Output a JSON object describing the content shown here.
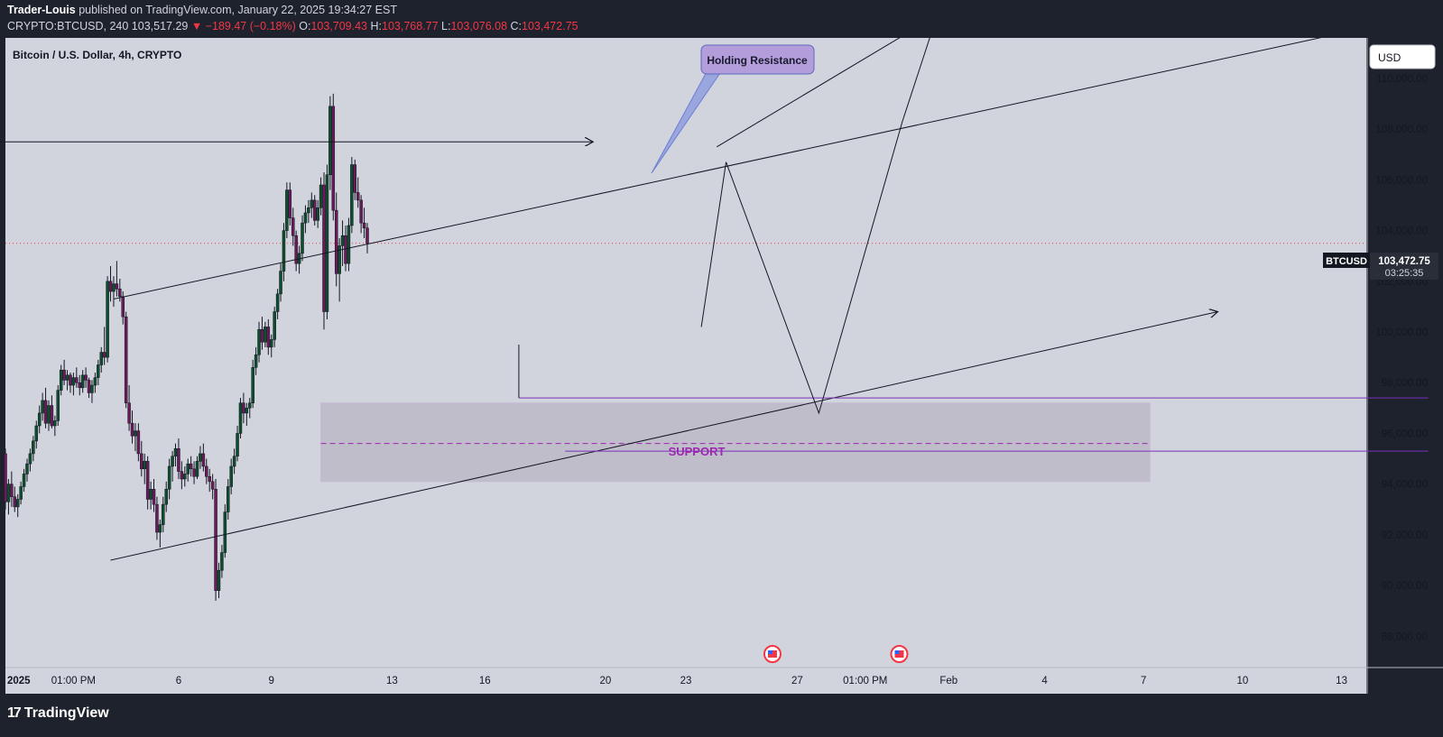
{
  "header": {
    "publisher": "Trader-Louis",
    "published_text": "published on TradingView.com, January 22, 2025 19:34:27 EST",
    "symbol": "CRYPTO:BTCUSD, 240",
    "last": "103,517.29",
    "change": "▼ −189.47 (−0.18%)",
    "o_label": "O:",
    "o": "103,709.43",
    "h_label": "H:",
    "h": "103,768.77",
    "l_label": "L:",
    "l": "103,076.08",
    "c_label": "C:",
    "c": "103,472.75"
  },
  "legend_title": "Bitcoin / U.S. Dollar, 4h, CRYPTO",
  "currency_button": "USD",
  "price_tag": {
    "symbol": "BTCUSD",
    "price": "103,472.75",
    "countdown": "03:25:35"
  },
  "annotations": {
    "callout": "Holding Resistance",
    "support": "SUPPORT"
  },
  "colors": {
    "bg": "#d1d4dc",
    "bull": "#0e4d2e",
    "bear": "#6b1a5a",
    "support_line": "#7b2fbe",
    "callout_fill": "#b39ddb",
    "zone": "#b8b5c4"
  },
  "branding": {
    "logo_mark": "17",
    "logo_text": "TradingView"
  },
  "chart_data": {
    "type": "candlestick",
    "title": "Bitcoin / U.S. Dollar, 4h, CRYPTO",
    "ylim": [
      86800,
      111600
    ],
    "y_ticks": [
      88000,
      90000,
      92000,
      94000,
      96000,
      98000,
      100000,
      102000,
      104000,
      106000,
      108000,
      110000
    ],
    "y_tick_labels": [
      "88,000.00",
      "90,000.00",
      "92,000.00",
      "94,000.00",
      "96,000.00",
      "98,000.00",
      "100,000.00",
      "102,000.00",
      "104,000.00",
      "106,000.00",
      "108,000.00",
      "110,000.00"
    ],
    "x_tick_labels": [
      "2025",
      "01:00 PM",
      "6",
      "9",
      "13",
      "16",
      "20",
      "23",
      "27",
      "01:00 PM",
      "Feb",
      "4",
      "7",
      "10",
      "13"
    ],
    "x_tick_index": [
      0,
      22,
      56,
      86,
      125,
      155,
      194,
      220,
      256,
      278,
      305,
      336,
      368,
      400,
      432
    ],
    "index_range": [
      0,
      440
    ],
    "candles_start": 0,
    "candles": [
      [
        95200,
        95400,
        93000,
        93300
      ],
      [
        93300,
        94200,
        92800,
        94000
      ],
      [
        94000,
        94500,
        93100,
        93500
      ],
      [
        93500,
        93900,
        92900,
        93100
      ],
      [
        93100,
        93600,
        92700,
        93400
      ],
      [
        93400,
        94100,
        93200,
        93900
      ],
      [
        93900,
        94600,
        93700,
        94400
      ],
      [
        94400,
        95000,
        94100,
        94800
      ],
      [
        94800,
        95400,
        94500,
        95200
      ],
      [
        95200,
        95900,
        94900,
        95700
      ],
      [
        95700,
        96500,
        95400,
        96300
      ],
      [
        96300,
        97100,
        96000,
        96800
      ],
      [
        96800,
        97600,
        96500,
        97300
      ],
      [
        97300,
        97800,
        96200,
        96400
      ],
      [
        96400,
        97300,
        96100,
        97100
      ],
      [
        97100,
        97500,
        96200,
        96300
      ],
      [
        96300,
        96700,
        95900,
        96500
      ],
      [
        96500,
        97900,
        96300,
        97700
      ],
      [
        97700,
        98700,
        97500,
        98500
      ],
      [
        98500,
        98900,
        97900,
        98100
      ],
      [
        98100,
        98500,
        97700,
        98300
      ],
      [
        98300,
        98400,
        97600,
        97900
      ],
      [
        97900,
        98400,
        97500,
        98200
      ],
      [
        98200,
        98600,
        97800,
        98000
      ],
      [
        98000,
        98300,
        97500,
        97800
      ],
      [
        97800,
        98500,
        97600,
        98300
      ],
      [
        98300,
        98600,
        97800,
        98100
      ],
      [
        98100,
        98200,
        97400,
        97600
      ],
      [
        97600,
        98100,
        97200,
        97900
      ],
      [
        97900,
        98400,
        97600,
        98200
      ],
      [
        98200,
        98900,
        97900,
        98700
      ],
      [
        98700,
        99400,
        98400,
        99200
      ],
      [
        99200,
        100200,
        98700,
        99000
      ],
      [
        99000,
        102200,
        98800,
        102000
      ],
      [
        102000,
        102600,
        101200,
        101600
      ],
      [
        101600,
        102200,
        101000,
        101900
      ],
      [
        101900,
        102800,
        101400,
        101700
      ],
      [
        101700,
        102100,
        101200,
        101400
      ],
      [
        101400,
        101600,
        100300,
        100600
      ],
      [
        100600,
        100800,
        97000,
        97200
      ],
      [
        97200,
        97900,
        96100,
        96400
      ],
      [
        96400,
        96900,
        95600,
        95900
      ],
      [
        95900,
        96400,
        95300,
        96100
      ],
      [
        96100,
        96400,
        94900,
        95200
      ],
      [
        95200,
        95700,
        94300,
        94600
      ],
      [
        94600,
        95200,
        94000,
        94900
      ],
      [
        94900,
        95100,
        93000,
        93400
      ],
      [
        93400,
        94100,
        93000,
        93800
      ],
      [
        93800,
        94200,
        92900,
        93200
      ],
      [
        93200,
        93500,
        91800,
        92100
      ],
      [
        92100,
        92600,
        91500,
        92400
      ],
      [
        92400,
        93500,
        92100,
        93200
      ],
      [
        93200,
        94100,
        92900,
        93800
      ],
      [
        93800,
        95000,
        93400,
        94700
      ],
      [
        94700,
        95300,
        94100,
        95100
      ],
      [
        95100,
        95600,
        94700,
        95400
      ],
      [
        95400,
        95800,
        94200,
        94500
      ],
      [
        94500,
        94900,
        93800,
        94200
      ],
      [
        94200,
        94700,
        93900,
        94400
      ],
      [
        94400,
        95000,
        94100,
        94800
      ],
      [
        94800,
        95100,
        94300,
        94600
      ],
      [
        94600,
        94900,
        94000,
        94300
      ],
      [
        94300,
        95100,
        94200,
        94900
      ],
      [
        94900,
        95500,
        94600,
        95200
      ],
      [
        95200,
        95600,
        94500,
        94700
      ],
      [
        94700,
        95000,
        94000,
        94300
      ],
      [
        94300,
        94600,
        93700,
        94100
      ],
      [
        94100,
        94400,
        93400,
        93800
      ],
      [
        93800,
        94200,
        89400,
        89800
      ],
      [
        89800,
        90900,
        89500,
        90600
      ],
      [
        90600,
        91600,
        90300,
        91300
      ],
      [
        91300,
        93200,
        91100,
        92900
      ],
      [
        92900,
        94200,
        92600,
        93900
      ],
      [
        93900,
        95000,
        93600,
        94700
      ],
      [
        94700,
        95400,
        94400,
        95100
      ],
      [
        95100,
        96300,
        94900,
        96000
      ],
      [
        96000,
        97400,
        95800,
        97200
      ],
      [
        97200,
        97600,
        96400,
        96800
      ],
      [
        96800,
        97200,
        96300,
        97000
      ],
      [
        97000,
        97400,
        96600,
        97200
      ],
      [
        97200,
        98900,
        97000,
        98600
      ],
      [
        98600,
        99400,
        98300,
        99100
      ],
      [
        99100,
        100400,
        98800,
        100100
      ],
      [
        100100,
        100600,
        99300,
        99600
      ],
      [
        99600,
        100400,
        99400,
        100200
      ],
      [
        100200,
        100500,
        99100,
        99400
      ],
      [
        99400,
        99900,
        99000,
        99700
      ],
      [
        99700,
        101000,
        99400,
        100800
      ],
      [
        100800,
        101700,
        100500,
        101500
      ],
      [
        101500,
        102700,
        101200,
        102400
      ],
      [
        102400,
        104300,
        102000,
        104000
      ],
      [
        104000,
        105900,
        103700,
        105600
      ],
      [
        105600,
        105900,
        104200,
        104500
      ],
      [
        104500,
        104900,
        103400,
        103800
      ],
      [
        103800,
        104000,
        102400,
        102700
      ],
      [
        102700,
        103400,
        102300,
        103100
      ],
      [
        103100,
        104600,
        102800,
        104300
      ],
      [
        104300,
        105000,
        103900,
        104700
      ],
      [
        104700,
        105200,
        104300,
        104900
      ],
      [
        104900,
        105500,
        104500,
        105200
      ],
      [
        105200,
        105400,
        104200,
        104400
      ],
      [
        104400,
        105200,
        104100,
        104900
      ],
      [
        104900,
        106100,
        104600,
        105800
      ],
      [
        105800,
        106300,
        100100,
        100800
      ],
      [
        100800,
        106600,
        100500,
        106200
      ],
      [
        106200,
        109300,
        105600,
        108900
      ],
      [
        108900,
        109400,
        104400,
        104800
      ],
      [
        104800,
        105500,
        101800,
        102300
      ],
      [
        102300,
        103700,
        101200,
        103400
      ],
      [
        103400,
        104400,
        102600,
        103800
      ],
      [
        103800,
        104200,
        102400,
        102700
      ],
      [
        102700,
        104500,
        102400,
        104200
      ],
      [
        104200,
        106900,
        103900,
        106600
      ],
      [
        106600,
        106800,
        105200,
        105500
      ],
      [
        105500,
        106100,
        104900,
        105200
      ],
      [
        105200,
        105400,
        103900,
        104300
      ],
      [
        104300,
        104900,
        103700,
        104100
      ],
      [
        104100,
        104300,
        103100,
        103500
      ]
    ],
    "drawings": [
      {
        "type": "arrow",
        "from": [
          -2,
          107500
        ],
        "to": [
          190,
          107500
        ]
      },
      {
        "type": "trendline",
        "name": "upper channel",
        "from": [
          35,
          101300
        ],
        "to": [
          440,
          112000
        ]
      },
      {
        "type": "trendline",
        "name": "upper extension",
        "from": [
          230,
          107300
        ],
        "to": [
          300,
          112400
        ]
      },
      {
        "type": "arrow",
        "name": "lower channel",
        "from": [
          34,
          91000
        ],
        "to": [
          392,
          100800
        ]
      },
      {
        "type": "horizontal",
        "from": [
          166,
          97400
        ],
        "to": [
          460,
          97400
        ]
      },
      {
        "type": "horizontal",
        "from": [
          181,
          95300
        ],
        "to": [
          460,
          95300
        ]
      },
      {
        "type": "projection",
        "points": [
          [
            225,
            100200
          ],
          [
            233,
            106700
          ],
          [
            263,
            96800
          ],
          [
            290,
            108300
          ],
          [
            301,
            112400
          ]
        ]
      },
      {
        "type": "zone",
        "x0": 102,
        "x1": 370,
        "y0": 94100,
        "y1": 97200,
        "mid": 95600
      }
    ],
    "events": [
      248,
      289
    ]
  }
}
